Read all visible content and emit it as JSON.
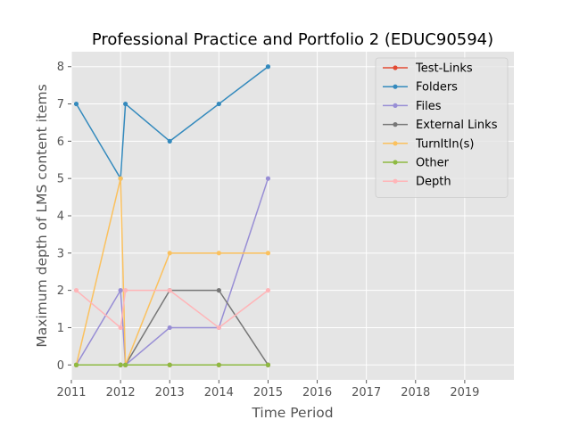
{
  "chart_data": {
    "type": "line",
    "title": "Professional Practice and Portfolio 2 (EDUC90594)",
    "xlabel": "Time Period",
    "ylabel": "Maximum depth of LMS content items",
    "xlim": [
      2011,
      2020
    ],
    "ylim": [
      -0.4,
      8.4
    ],
    "x_ticks": [
      "2011",
      "2012",
      "2013",
      "2014",
      "2015",
      "2016",
      "2017",
      "2018",
      "2019"
    ],
    "y_ticks": [
      "0",
      "1",
      "2",
      "3",
      "4",
      "5",
      "6",
      "7",
      "8"
    ],
    "grid": true,
    "legend_position": "top-right",
    "x": [
      2011.1,
      2012.0,
      2012.1,
      2013.0,
      2014.0,
      2015.0
    ],
    "series": [
      {
        "name": "Test-Links",
        "color": "#E24A33",
        "values": [
          0,
          0,
          0,
          0,
          0,
          0
        ]
      },
      {
        "name": "Folders",
        "color": "#348ABD",
        "values": [
          7,
          5,
          7,
          6,
          7,
          8
        ]
      },
      {
        "name": "Files",
        "color": "#988ED5",
        "values": [
          0,
          2,
          0,
          1,
          1,
          5
        ]
      },
      {
        "name": "External Links",
        "color": "#777777",
        "values": [
          0,
          0,
          0,
          2,
          2,
          0
        ]
      },
      {
        "name": "TurnItIn(s)",
        "color": "#FBC15E",
        "values": [
          0,
          5,
          0,
          3,
          3,
          3
        ]
      },
      {
        "name": "Other",
        "color": "#8EBA42",
        "values": [
          0,
          0,
          0,
          0,
          0,
          0
        ]
      },
      {
        "name": "Depth",
        "color": "#FFB5B8",
        "values": [
          2,
          1,
          2,
          2,
          1,
          2
        ]
      }
    ]
  }
}
